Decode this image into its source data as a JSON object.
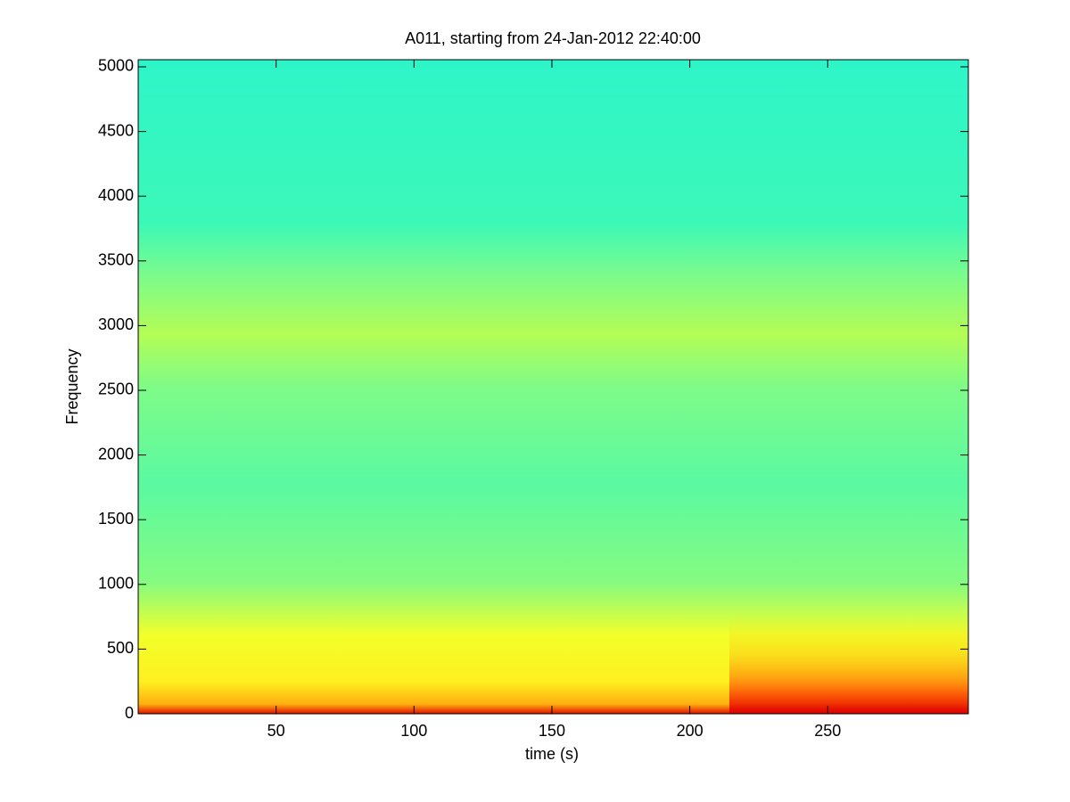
{
  "chart_data": {
    "type": "spectrogram",
    "title": "A011, starting from 24-Jan-2012 22:40:00",
    "x_label": "time (s)",
    "y_label": "Frequency",
    "xlim": [
      0,
      301
    ],
    "xticks": [
      50,
      100,
      150,
      200,
      250
    ],
    "ylim": [
      0,
      5055
    ],
    "yticks": [
      0,
      500,
      1000,
      1500,
      2000,
      2500,
      3000,
      3500,
      4000,
      4500,
      5000
    ],
    "grid": false
  }
}
